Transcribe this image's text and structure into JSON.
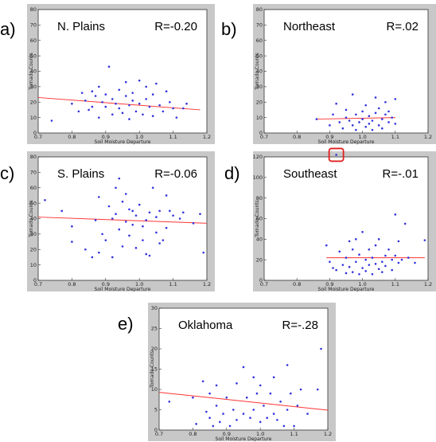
{
  "panels": [
    {
      "letter": "a)"
    },
    {
      "letter": "b)"
    },
    {
      "letter": "c)"
    },
    {
      "letter": "d)"
    },
    {
      "letter": "e)"
    }
  ],
  "colors": {
    "points": "#3333dd",
    "fit": "#ff3333",
    "frame": "#c8c8c8",
    "highlight": "#e02020"
  },
  "chart_data": [
    {
      "type": "scatter",
      "title": "N. Plains",
      "annotation": "R=-0.20",
      "xlabel": "Soil Moisture Departure",
      "ylabel": "Tornado Counts",
      "xlim": [
        0.7,
        1.2
      ],
      "ylim": [
        0,
        80
      ],
      "xticks": [
        "0.7",
        "0.8",
        "0.9",
        "1.0",
        "1.1",
        "1.2"
      ],
      "yticks": [
        "0",
        "10",
        "20",
        "30",
        "40",
        "50",
        "60",
        "70",
        "80"
      ],
      "fit": [
        [
          0.7,
          23
        ],
        [
          1.18,
          15
        ]
      ],
      "points": [
        [
          0.74,
          8
        ],
        [
          0.8,
          19
        ],
        [
          0.82,
          14
        ],
        [
          0.83,
          26
        ],
        [
          0.84,
          21
        ],
        [
          0.85,
          15
        ],
        [
          0.86,
          27
        ],
        [
          0.86,
          17
        ],
        [
          0.87,
          24
        ],
        [
          0.88,
          10
        ],
        [
          0.88,
          30
        ],
        [
          0.89,
          20
        ],
        [
          0.9,
          25
        ],
        [
          0.9,
          17
        ],
        [
          0.91,
          43
        ],
        [
          0.92,
          22
        ],
        [
          0.92,
          12
        ],
        [
          0.93,
          19
        ],
        [
          0.94,
          28
        ],
        [
          0.94,
          16
        ],
        [
          0.95,
          13
        ],
        [
          0.96,
          24
        ],
        [
          0.96,
          33
        ],
        [
          0.97,
          18
        ],
        [
          0.97,
          9
        ],
        [
          0.98,
          21
        ],
        [
          0.98,
          26
        ],
        [
          0.99,
          14
        ],
        [
          1.0,
          19
        ],
        [
          1.0,
          34
        ],
        [
          1.01,
          12
        ],
        [
          1.02,
          22
        ],
        [
          1.02,
          30
        ],
        [
          1.03,
          17
        ],
        [
          1.04,
          25
        ],
        [
          1.04,
          11
        ],
        [
          1.05,
          32
        ],
        [
          1.06,
          18
        ],
        [
          1.07,
          14
        ],
        [
          1.08,
          27
        ],
        [
          1.09,
          20
        ],
        [
          1.1,
          16
        ],
        [
          1.11,
          10
        ],
        [
          1.13,
          16
        ],
        [
          1.14,
          19
        ]
      ]
    },
    {
      "type": "scatter",
      "title": "Northeast",
      "annotation": "R=.02",
      "xlabel": "Soil Moisture Departure",
      "ylabel": "Tornado Counts",
      "xlim": [
        0.7,
        1.2
      ],
      "ylim": [
        0,
        80
      ],
      "xticks": [
        "0.7",
        "0.8",
        "0.9",
        "1.0",
        "1.1",
        "1.2"
      ],
      "yticks": [
        "0",
        "10",
        "20",
        "30",
        "40",
        "50",
        "60",
        "70",
        "80"
      ],
      "fit": [
        [
          0.86,
          9
        ],
        [
          1.1,
          10
        ]
      ],
      "points": [
        [
          0.86,
          9
        ],
        [
          0.9,
          5
        ],
        [
          0.91,
          12
        ],
        [
          0.92,
          19
        ],
        [
          0.93,
          7
        ],
        [
          0.94,
          3
        ],
        [
          0.95,
          10
        ],
        [
          0.95,
          15
        ],
        [
          0.96,
          8
        ],
        [
          0.97,
          25
        ],
        [
          0.97,
          5
        ],
        [
          0.98,
          12
        ],
        [
          0.98,
          2
        ],
        [
          0.99,
          7
        ],
        [
          1.0,
          9
        ],
        [
          1.0,
          14
        ],
        [
          1.01,
          4
        ],
        [
          1.01,
          18
        ],
        [
          1.02,
          6
        ],
        [
          1.02,
          11
        ],
        [
          1.03,
          2
        ],
        [
          1.03,
          8
        ],
        [
          1.04,
          13
        ],
        [
          1.04,
          23
        ],
        [
          1.05,
          5
        ],
        [
          1.05,
          16
        ],
        [
          1.06,
          9
        ],
        [
          1.06,
          3
        ],
        [
          1.07,
          12
        ],
        [
          1.07,
          20
        ],
        [
          1.08,
          7
        ],
        [
          1.08,
          14
        ],
        [
          1.09,
          10
        ],
        [
          1.1,
          6
        ],
        [
          1.1,
          22
        ]
      ]
    },
    {
      "type": "scatter",
      "title": "S. Plains",
      "annotation": "R=-0.06",
      "xlabel": "Soil Moisture Departure",
      "ylabel": "Tornado Counts",
      "xlim": [
        0.7,
        1.2
      ],
      "ylim": [
        0,
        80
      ],
      "xticks": [
        "0.7",
        "0.8",
        "0.9",
        "1.0",
        "1.1",
        "1.2"
      ],
      "yticks": [
        "0",
        "10",
        "20",
        "30",
        "40",
        "50",
        "60",
        "70",
        "80"
      ],
      "fit": [
        [
          0.7,
          41
        ],
        [
          1.2,
          37
        ]
      ],
      "points": [
        [
          0.72,
          52
        ],
        [
          0.77,
          45
        ],
        [
          0.8,
          35
        ],
        [
          0.8,
          25
        ],
        [
          0.84,
          20
        ],
        [
          0.86,
          15
        ],
        [
          0.87,
          39
        ],
        [
          0.88,
          54
        ],
        [
          0.88,
          18
        ],
        [
          0.89,
          30
        ],
        [
          0.9,
          26
        ],
        [
          0.91,
          48
        ],
        [
          0.92,
          40
        ],
        [
          0.92,
          15
        ],
        [
          0.93,
          60
        ],
        [
          0.93,
          43
        ],
        [
          0.94,
          66
        ],
        [
          0.94,
          33
        ],
        [
          0.95,
          51
        ],
        [
          0.95,
          22
        ],
        [
          0.96,
          56
        ],
        [
          0.96,
          38
        ],
        [
          0.97,
          46
        ],
        [
          0.97,
          29
        ],
        [
          0.98,
          45
        ],
        [
          0.98,
          36
        ],
        [
          0.99,
          42
        ],
        [
          0.99,
          21
        ],
        [
          1.0,
          49
        ],
        [
          1.01,
          35
        ],
        [
          1.01,
          26
        ],
        [
          1.02,
          39
        ],
        [
          1.02,
          17
        ],
        [
          1.03,
          16
        ],
        [
          1.03,
          44
        ],
        [
          1.04,
          60
        ],
        [
          1.05,
          31
        ],
        [
          1.05,
          41
        ],
        [
          1.06,
          24
        ],
        [
          1.06,
          45
        ],
        [
          1.07,
          26
        ],
        [
          1.08,
          55
        ],
        [
          1.08,
          34
        ],
        [
          1.09,
          45
        ],
        [
          1.1,
          42
        ],
        [
          1.12,
          40
        ],
        [
          1.13,
          44
        ],
        [
          1.16,
          37
        ],
        [
          1.18,
          43
        ],
        [
          1.19,
          18
        ]
      ]
    },
    {
      "type": "scatter",
      "title": "Southeast",
      "annotation": "R=-.01",
      "xlabel": "Soil Moisture Departure",
      "ylabel": "Tornado Counts",
      "xlim": [
        0.7,
        1.2
      ],
      "ylim": [
        0,
        120
      ],
      "xticks": [
        "0.7",
        "0.8",
        "0.9",
        "1.0",
        "1.1",
        "1.2"
      ],
      "yticks": [
        "0",
        "20",
        "40",
        "60",
        "80",
        "100",
        "120"
      ],
      "highlight": [
        0.92,
        122
      ],
      "fit": [
        [
          0.89,
          22
        ],
        [
          1.19,
          22
        ]
      ],
      "points": [
        [
          0.89,
          34
        ],
        [
          0.9,
          18
        ],
        [
          0.91,
          12
        ],
        [
          0.92,
          122
        ],
        [
          0.92,
          10
        ],
        [
          0.93,
          28
        ],
        [
          0.94,
          15
        ],
        [
          0.95,
          7
        ],
        [
          0.95,
          22
        ],
        [
          0.96,
          13
        ],
        [
          0.96,
          38
        ],
        [
          0.97,
          30
        ],
        [
          0.97,
          8
        ],
        [
          0.98,
          40
        ],
        [
          0.98,
          18
        ],
        [
          0.99,
          6
        ],
        [
          0.99,
          25
        ],
        [
          1.0,
          12
        ],
        [
          1.0,
          47
        ],
        [
          1.01,
          20
        ],
        [
          1.01,
          9
        ],
        [
          1.02,
          30
        ],
        [
          1.02,
          15
        ],
        [
          1.03,
          6
        ],
        [
          1.03,
          22
        ],
        [
          1.04,
          16
        ],
        [
          1.04,
          34
        ],
        [
          1.05,
          11
        ],
        [
          1.05,
          40
        ],
        [
          1.06,
          18
        ],
        [
          1.06,
          8
        ],
        [
          1.07,
          24
        ],
        [
          1.07,
          14
        ],
        [
          1.08,
          30
        ],
        [
          1.09,
          20
        ],
        [
          1.09,
          10
        ],
        [
          1.1,
          64
        ],
        [
          1.1,
          24
        ],
        [
          1.11,
          17
        ],
        [
          1.11,
          38
        ],
        [
          1.12,
          20
        ],
        [
          1.13,
          55
        ],
        [
          1.14,
          22
        ],
        [
          1.16,
          17
        ],
        [
          1.19,
          39
        ]
      ]
    },
    {
      "type": "scatter",
      "title": "Oklahoma",
      "annotation": "R=-.28",
      "xlabel": "Soil Moisture Departure",
      "ylabel": "Tornado Counts",
      "xlim": [
        0.7,
        1.2
      ],
      "ylim": [
        0,
        30
      ],
      "xticks": [
        "0.7",
        "0.8",
        "0.9",
        "1.0",
        "1.1",
        "1.2"
      ],
      "yticks": [
        "0",
        "5",
        "10",
        "15",
        "20",
        "25",
        "30"
      ],
      "fit": [
        [
          0.7,
          9.3
        ],
        [
          1.2,
          4.9
        ]
      ],
      "points": [
        [
          0.73,
          7
        ],
        [
          0.8,
          8
        ],
        [
          0.81,
          1.5
        ],
        [
          0.83,
          12
        ],
        [
          0.84,
          4.5
        ],
        [
          0.85,
          3
        ],
        [
          0.85,
          9
        ],
        [
          0.86,
          1
        ],
        [
          0.87,
          11
        ],
        [
          0.87,
          6
        ],
        [
          0.88,
          2
        ],
        [
          0.89,
          4
        ],
        [
          0.9,
          8
        ],
        [
          0.91,
          1
        ],
        [
          0.92,
          5
        ],
        [
          0.93,
          11.5
        ],
        [
          0.93,
          2.5
        ],
        [
          0.95,
          15.5
        ],
        [
          0.95,
          4
        ],
        [
          0.96,
          8
        ],
        [
          0.97,
          3
        ],
        [
          0.98,
          13
        ],
        [
          0.98,
          5
        ],
        [
          0.99,
          9
        ],
        [
          1.0,
          2
        ],
        [
          1.0,
          11
        ],
        [
          1.01,
          6
        ],
        [
          1.02,
          3
        ],
        [
          1.03,
          9
        ],
        [
          1.04,
          4
        ],
        [
          1.04,
          13
        ],
        [
          1.05,
          2.5
        ],
        [
          1.06,
          7
        ],
        [
          1.07,
          1
        ],
        [
          1.08,
          16
        ],
        [
          1.08,
          5
        ],
        [
          1.09,
          9
        ],
        [
          1.1,
          1
        ],
        [
          1.11,
          6
        ],
        [
          1.12,
          10
        ],
        [
          1.14,
          4
        ],
        [
          1.17,
          10
        ],
        [
          1.18,
          20
        ]
      ]
    }
  ]
}
